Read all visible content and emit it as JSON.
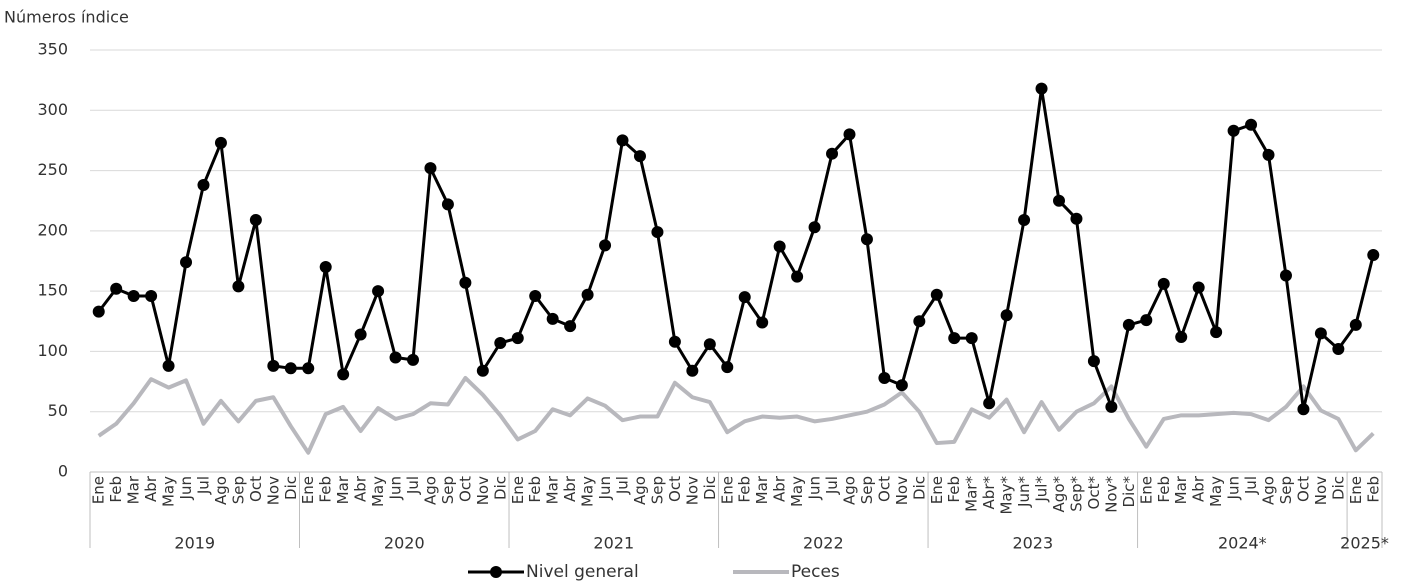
{
  "chart_data": {
    "type": "line",
    "y_axis_title": "Números índice",
    "categories": [
      "Ene",
      "Feb",
      "Mar",
      "Abr",
      "May",
      "Jun",
      "Jul",
      "Ago",
      "Sep",
      "Oct",
      "Nov",
      "Dic",
      "Ene",
      "Feb",
      "Mar",
      "Abr",
      "May",
      "Jun",
      "Jul",
      "Ago",
      "Sep",
      "Oct",
      "Nov",
      "Dic",
      "Ene",
      "Feb",
      "Mar",
      "Abr",
      "May",
      "Jun",
      "Jul",
      "Ago",
      "Sep",
      "Oct",
      "Nov",
      "Dic",
      "Ene",
      "Feb",
      "Mar",
      "Abr",
      "May",
      "Jun",
      "Jul",
      "Ago",
      "Sep",
      "Oct",
      "Nov",
      "Dic",
      "Ene",
      "Feb",
      "Mar*",
      "Abr*",
      "May*",
      "Jun*",
      "Jul*",
      "Ago*",
      "Sep*",
      "Oct*",
      "Nov*",
      "Dic*",
      "Ene",
      "Feb",
      "Mar",
      "Abr",
      "May",
      "Jun",
      "Jul",
      "Ago",
      "Sep",
      "Oct",
      "Nov",
      "Dic",
      "Ene",
      "Feb"
    ],
    "groups": [
      "2019",
      "2020",
      "2021",
      "2022",
      "2023",
      "2024*",
      "2025*"
    ],
    "series": [
      {
        "name": "Nivel general",
        "color": "#000000",
        "marker": "circle",
        "values": [
          133,
          152,
          146,
          146,
          88,
          174,
          238,
          273,
          154,
          209,
          88,
          86,
          86,
          170,
          81,
          114,
          150,
          95,
          93,
          252,
          222,
          157,
          84,
          107,
          111,
          146,
          127,
          121,
          147,
          188,
          275,
          262,
          199,
          108,
          84,
          106,
          87,
          145,
          124,
          187,
          162,
          203,
          264,
          280,
          193,
          78,
          72,
          125,
          147,
          111,
          111,
          57,
          130,
          209,
          318,
          225,
          210,
          92,
          54,
          122,
          126,
          156,
          112,
          153,
          116,
          283,
          288,
          263,
          163,
          52,
          115,
          102,
          122,
          180
        ]
      },
      {
        "name": "Peces",
        "color": "#b8b8bd",
        "values": [
          30,
          40,
          57,
          77,
          70,
          76,
          40,
          59,
          42,
          59,
          62,
          38,
          16,
          48,
          54,
          34,
          53,
          44,
          48,
          57,
          56,
          78,
          64,
          47,
          27,
          34,
          52,
          47,
          61,
          55,
          43,
          46,
          46,
          74,
          62,
          58,
          33,
          42,
          46,
          45,
          46,
          42,
          44,
          47,
          50,
          56,
          66,
          50,
          24,
          25,
          52,
          45,
          60,
          33,
          58,
          35,
          50,
          57,
          71,
          44,
          21,
          44,
          47,
          47,
          48,
          49,
          48,
          43,
          54,
          71,
          51,
          44,
          18,
          32
        ]
      }
    ],
    "ylim": [
      0,
      350
    ],
    "yticks": [
      0,
      50,
      100,
      150,
      200,
      250,
      300,
      350
    ],
    "grid": true,
    "legend": "bottom"
  }
}
